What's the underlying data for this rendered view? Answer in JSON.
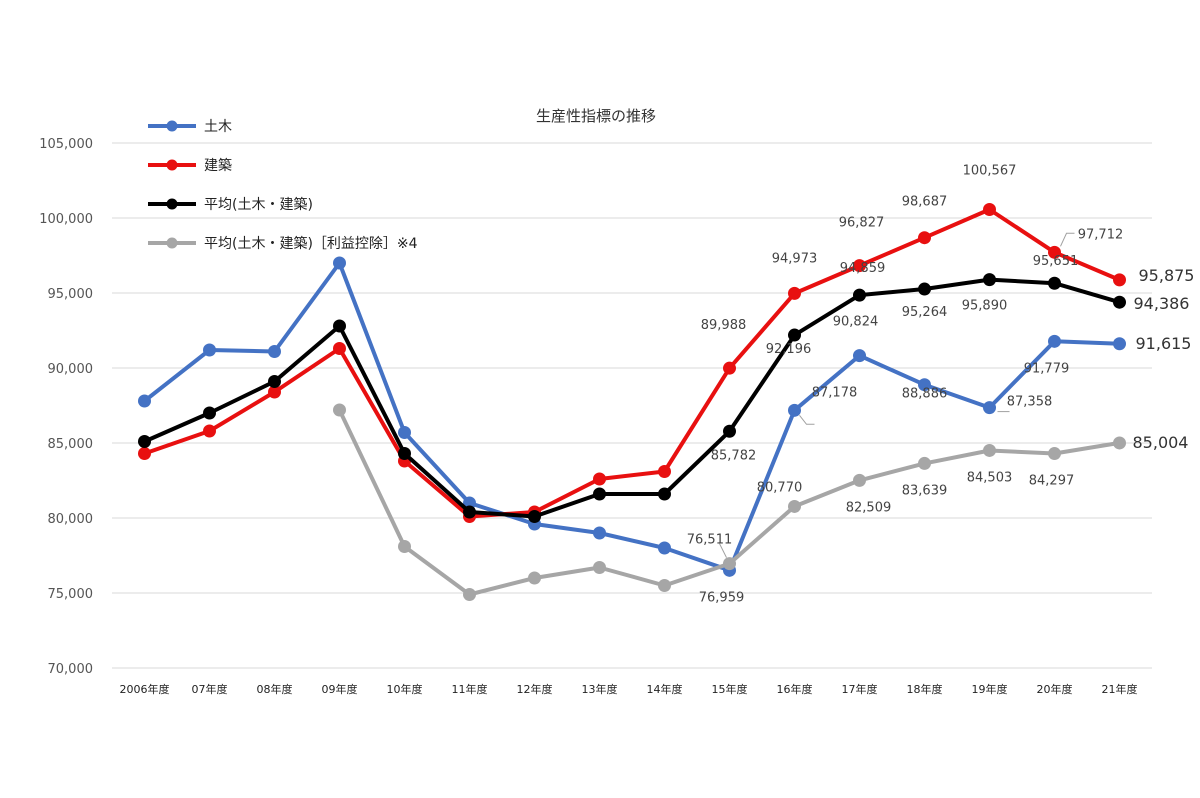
{
  "chart_data": {
    "type": "line",
    "title": "生産性指標の推移",
    "categories": [
      "2006年度",
      "07年度",
      "08年度",
      "09年度",
      "10年度",
      "11年度",
      "12年度",
      "13年度",
      "14年度",
      "15年度",
      "16年度",
      "17年度",
      "18年度",
      "19年度",
      "20年度",
      "21年度"
    ],
    "ylim": [
      70000,
      105000
    ],
    "yticks": [
      70000,
      75000,
      80000,
      85000,
      90000,
      95000,
      100000,
      105000
    ],
    "ytick_labels": [
      "70,000",
      "75,000",
      "80,000",
      "85,000",
      "90,000",
      "95,000",
      "100,000",
      "105,000"
    ],
    "grid": true,
    "legend_position": "top-left",
    "series": [
      {
        "name": "土木",
        "color": "#4472c4",
        "values": [
          87800,
          91200,
          91100,
          97000,
          85700,
          81000,
          79600,
          79000,
          78000,
          76511,
          87178,
          90824,
          88886,
          87358,
          91779,
          91615
        ],
        "labels": [
          null,
          null,
          null,
          null,
          null,
          null,
          null,
          null,
          null,
          "76,511",
          "87,178",
          "90,824",
          "88,886",
          "87,358",
          "91,779",
          "91,615"
        ]
      },
      {
        "name": "建築",
        "color": "#e81010",
        "values": [
          84300,
          85800,
          88400,
          91300,
          83800,
          80100,
          80400,
          82600,
          83100,
          89988,
          94973,
          96827,
          98687,
          100567,
          97712,
          95875
        ],
        "labels": [
          null,
          null,
          null,
          null,
          null,
          null,
          null,
          null,
          null,
          "89,988",
          "94,973",
          "96,827",
          "98,687",
          "100,567",
          "97,712",
          "95,875"
        ]
      },
      {
        "name": "平均(土木・建築)",
        "color": "#000000",
        "values": [
          85100,
          87000,
          89100,
          92800,
          84300,
          80400,
          80100,
          81600,
          81600,
          85782,
          92196,
          94859,
          95264,
          95890,
          95651,
          94386
        ],
        "labels": [
          null,
          null,
          null,
          null,
          null,
          null,
          null,
          null,
          null,
          "85,782",
          "92,196",
          "94,859",
          "95,264",
          "95,890",
          "95,651",
          "94,386"
        ]
      },
      {
        "name": "平均(土木・建築)［利益控除］※4",
        "color": "#a6a6a6",
        "values": [
          null,
          null,
          null,
          87200,
          78100,
          74900,
          76000,
          76700,
          75500,
          76959,
          80770,
          82509,
          83639,
          84503,
          84297,
          85004
        ],
        "labels": [
          null,
          null,
          null,
          null,
          null,
          null,
          null,
          null,
          null,
          "76,959",
          "80,770",
          "82,509",
          "83,639",
          "84,503",
          "84,297",
          "85,004"
        ]
      }
    ]
  }
}
